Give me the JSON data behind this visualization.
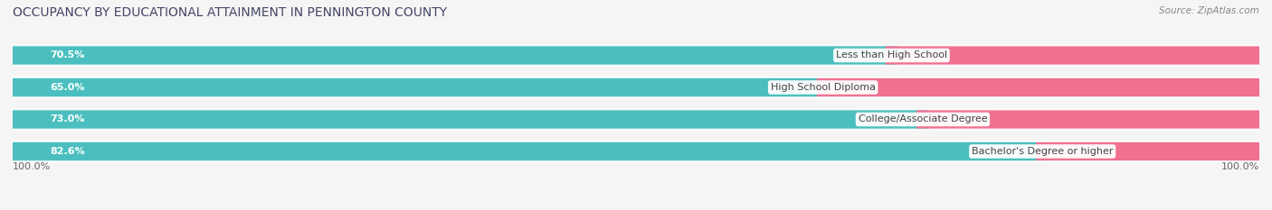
{
  "title": "OCCUPANCY BY EDUCATIONAL ATTAINMENT IN PENNINGTON COUNTY",
  "source": "Source: ZipAtlas.com",
  "categories": [
    "Less than High School",
    "High School Diploma",
    "College/Associate Degree",
    "Bachelor's Degree or higher"
  ],
  "owner_values": [
    70.5,
    65.0,
    73.0,
    82.6
  ],
  "renter_values": [
    29.5,
    35.0,
    27.0,
    17.4
  ],
  "owner_color": "#4bbfbf",
  "renter_color": "#f07090",
  "owner_color_light": "#daf0f0",
  "renter_color_light": "#fce8ee",
  "bg_row_color": "#e8e8e8",
  "title_fontsize": 10,
  "label_fontsize": 8,
  "value_fontsize": 8,
  "legend_fontsize": 8.5,
  "axis_label_fontsize": 8,
  "background_color": "#f5f5f5",
  "left_axis_label": "100.0%",
  "right_axis_label": "100.0%"
}
